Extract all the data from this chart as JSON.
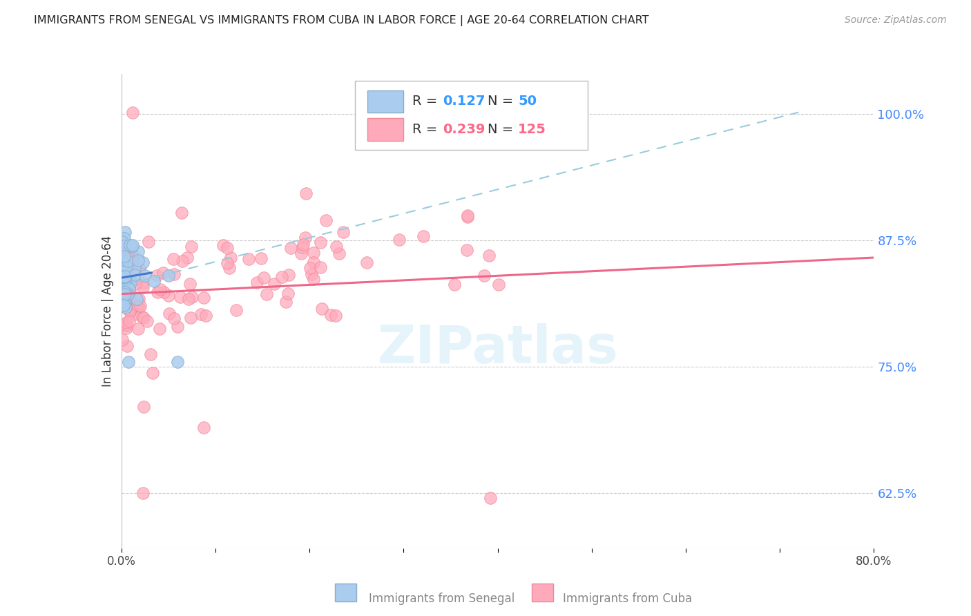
{
  "title": "IMMIGRANTS FROM SENEGAL VS IMMIGRANTS FROM CUBA IN LABOR FORCE | AGE 20-64 CORRELATION CHART",
  "source": "Source: ZipAtlas.com",
  "ylabel": "In Labor Force | Age 20-64",
  "senegal": {
    "label": "Immigrants from Senegal",
    "R": 0.127,
    "N": 50,
    "color": "#AACCEE",
    "edge_color": "#88AACC"
  },
  "cuba": {
    "label": "Immigrants from Cuba",
    "R": 0.239,
    "N": 125,
    "color": "#FFAABB",
    "edge_color": "#EE8899"
  },
  "xlim": [
    0.0,
    0.8
  ],
  "ylim": [
    0.57,
    1.04
  ],
  "yticks": [
    0.625,
    0.75,
    0.875,
    1.0
  ],
  "ytick_labels": [
    "62.5%",
    "75.0%",
    "87.5%",
    "100.0%"
  ],
  "xticks": [
    0.0,
    0.1,
    0.2,
    0.3,
    0.4,
    0.5,
    0.6,
    0.7,
    0.8
  ],
  "xtick_labels": [
    "0.0%",
    "",
    "",
    "",
    "",
    "",
    "",
    "",
    "80.0%"
  ],
  "grid_color": "#CCCCCC",
  "bg_color": "#FFFFFF",
  "right_label_color": "#4488FF",
  "watermark": "ZIPatlas",
  "senegal_color_legend": "#AACCEE",
  "cuba_color_legend": "#FFAABB",
  "senegal_edge_legend": "#88AACC",
  "cuba_edge_legend": "#EE8899"
}
